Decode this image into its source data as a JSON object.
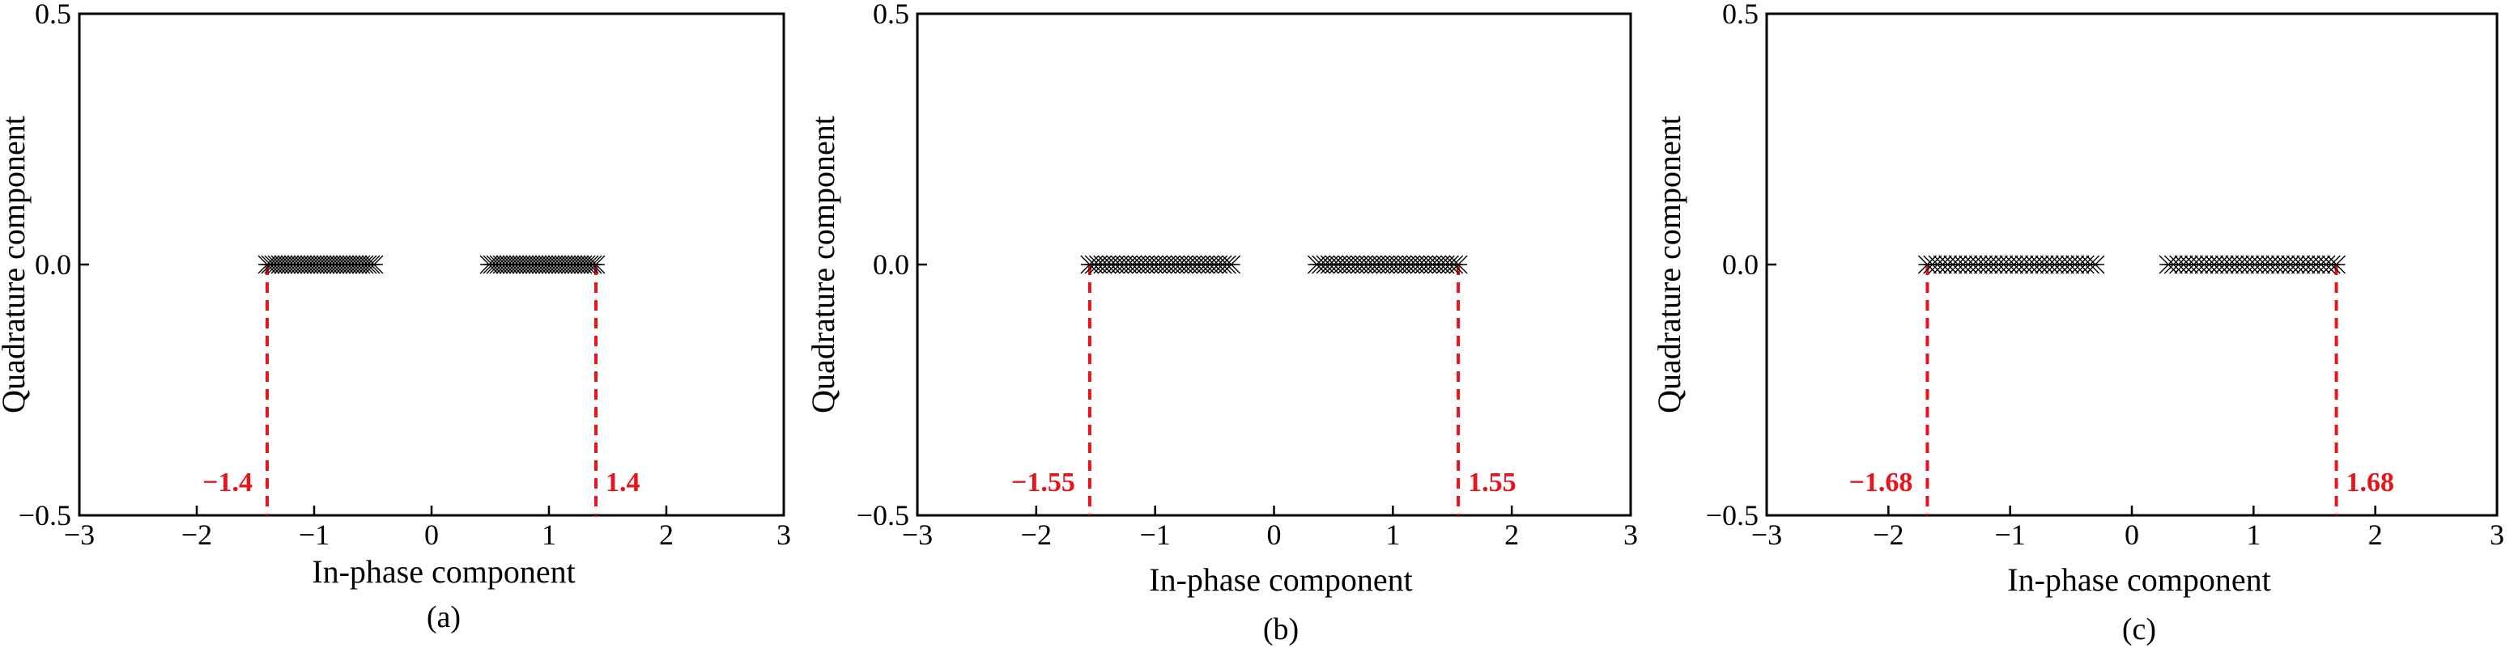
{
  "chart_data": [
    {
      "type": "scatter",
      "caption": "(a)",
      "xlabel": "In-phase component",
      "ylabel": "Quadrature component",
      "xlim": [
        -3,
        3
      ],
      "ylim": [
        -0.5,
        0.5
      ],
      "xticks": [
        "−3",
        "−2",
        "−1",
        "0",
        "1",
        "2",
        "3"
      ],
      "yticks": [
        "−0.5",
        "0.0",
        "0.5"
      ],
      "series": [
        {
          "marker": "x",
          "color": "#000000",
          "clusters": [
            {
              "x": [
                -1.4,
                -0.49
              ],
              "y": 0.0
            },
            {
              "x": [
                0.49,
                1.4
              ],
              "y": 0.0
            }
          ]
        }
      ],
      "annotations": [
        {
          "x": -1.4,
          "label": "−1.4",
          "color": "#e8141b"
        },
        {
          "x": 1.4,
          "label": "1.4",
          "color": "#e8141b"
        }
      ]
    },
    {
      "type": "scatter",
      "caption": "(b)",
      "xlabel": "In-phase component",
      "ylabel": "Quadrature component",
      "xlim": [
        -3,
        3
      ],
      "ylim": [
        -0.5,
        0.5
      ],
      "xticks": [
        "−3",
        "−2",
        "−1",
        "0",
        "1",
        "2",
        "3"
      ],
      "yticks": [
        "−0.5",
        "0.0",
        "0.5"
      ],
      "series": [
        {
          "marker": "x",
          "color": "#000000",
          "clusters": [
            {
              "x": [
                -1.55,
                -0.36
              ],
              "y": 0.0
            },
            {
              "x": [
                0.36,
                1.55
              ],
              "y": 0.0
            }
          ]
        }
      ],
      "annotations": [
        {
          "x": -1.55,
          "label": "−1.55",
          "color": "#e8141b"
        },
        {
          "x": 1.55,
          "label": "1.55",
          "color": "#e8141b"
        }
      ]
    },
    {
      "type": "scatter",
      "caption": "(c)",
      "xlabel": "In-phase component",
      "ylabel": "Quadrature component",
      "xlim": [
        -3,
        3
      ],
      "ylim": [
        -0.5,
        0.5
      ],
      "xticks": [
        "−3",
        "−2",
        "−1",
        "0",
        "1",
        "2",
        "3"
      ],
      "yticks": [
        "−0.5",
        "0.0",
        "0.5"
      ],
      "series": [
        {
          "marker": "x",
          "color": "#000000",
          "clusters": [
            {
              "x": [
                -1.68,
                -0.3
              ],
              "y": 0.0
            },
            {
              "x": [
                0.3,
                1.68
              ],
              "y": 0.0
            }
          ]
        }
      ],
      "annotations": [
        {
          "x": -1.68,
          "label": "−1.68",
          "color": "#e8141b"
        },
        {
          "x": 1.68,
          "label": "1.68",
          "color": "#e8141b"
        }
      ]
    }
  ]
}
